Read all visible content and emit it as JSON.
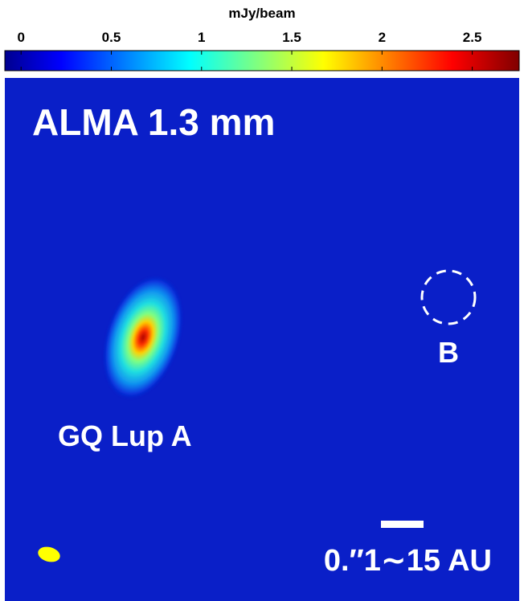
{
  "colorbar": {
    "label": "mJy/beam",
    "range": [
      -0.09,
      2.76
    ],
    "ticks": [
      0,
      0.5,
      1,
      1.5,
      2,
      2.5
    ],
    "colormap": "jet"
  },
  "image": {
    "title": "ALMA 1.3 mm",
    "source_a": "GQ Lup A",
    "source_b": "B",
    "scale_bar": "0.″1∼15 AU"
  }
}
